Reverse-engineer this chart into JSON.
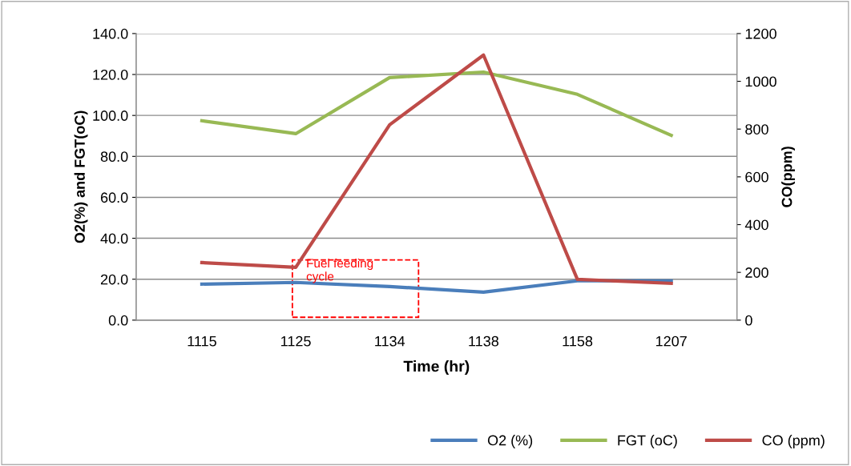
{
  "chart_data": {
    "type": "line",
    "xlabel": "Time (hr)",
    "ylabel": "O2(%) and FGT(oC)",
    "y2label": "CO(ppm)",
    "categories": [
      "1115",
      "1125",
      "1134",
      "1138",
      "1158",
      "1207"
    ],
    "series": [
      {
        "name": "O2 (%)",
        "color": "#4a7ebb",
        "values": [
          17.6,
          18.4,
          16.4,
          13.7,
          19.2,
          19.2
        ]
      },
      {
        "name": "FGT (oC)",
        "color": "#98b954",
        "values": [
          97.4,
          91.1,
          118.5,
          121.2,
          110.3,
          90.3
        ]
      },
      {
        "name": "CO (ppm)",
        "color": "#be4b48",
        "axis": "y2",
        "values": [
          241,
          221,
          818,
          1110,
          171,
          154
        ]
      }
    ],
    "ylim": [
      0,
      140
    ],
    "yticks": [
      {
        "value": 0,
        "label": "0.0"
      },
      {
        "value": 20,
        "label": "20.0"
      },
      {
        "value": 40,
        "label": "40.0"
      },
      {
        "value": 60,
        "label": "60.0"
      },
      {
        "value": 80,
        "label": "80.0"
      },
      {
        "value": 100,
        "label": "100.0"
      },
      {
        "value": 120,
        "label": "120.0"
      },
      {
        "value": 140,
        "label": "140.0"
      }
    ],
    "y2lim": [
      0,
      1200
    ],
    "y2ticks": [
      0,
      200,
      400,
      600,
      800,
      1000,
      1200
    ],
    "grid": "y",
    "legend": "bottom right",
    "marker": "none",
    "line_style": "solid",
    "annotations": [
      "Fuel feeding\ncycle"
    ]
  }
}
